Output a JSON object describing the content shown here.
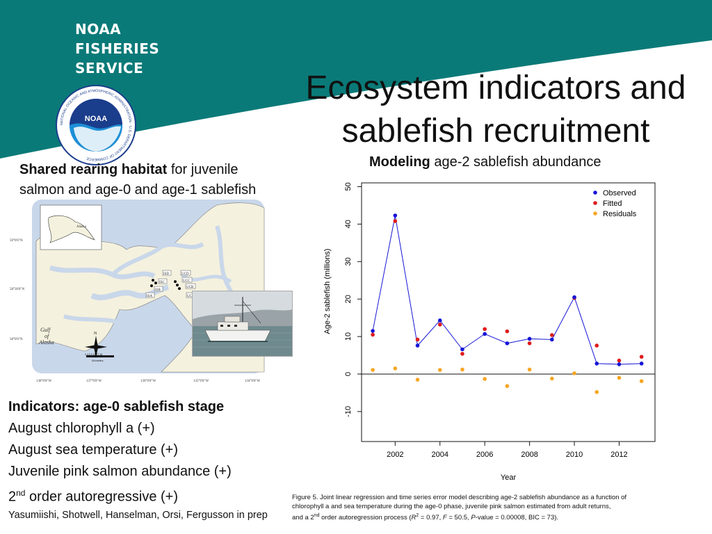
{
  "brand": {
    "line1": "NOAA",
    "line2": "FISHERIES",
    "line3": "SERVICE",
    "logo_text": "NOAA",
    "logo_ring": "NATIONAL OCEANIC AND ATMOSPHERIC ADMINISTRATION · U.S. DEPARTMENT OF COMMERCE",
    "colors": {
      "teal": "#0a7a78",
      "navy": "#1a3d8c",
      "sky": "#1d8fd6"
    }
  },
  "title": {
    "line1": "Ecosystem indicators and",
    "line2": "sablefish recruitment"
  },
  "left": {
    "heading_bold": "Shared rearing habitat",
    "heading_rest": " for juvenile",
    "heading_line2": "salmon and age-0 and age-1 sablefish"
  },
  "map": {
    "lat_labels": [
      "59°0'0\"N",
      "58°30'0\"N",
      "58°0'0\"N"
    ],
    "lon_labels": [
      "138°0'0\"W",
      "137°0'0\"W",
      "136°0'0\"W",
      "135°0'0\"W",
      "134°0'0\"W"
    ],
    "inset_label": "Alaska",
    "gulf_label_1": "Gulf",
    "gulf_label_2": "of",
    "gulf_label_3": "Alaska",
    "stations": [
      "ISD",
      "ISC",
      "ISB",
      "ISA",
      "UCD",
      "UCC",
      "UCB",
      "UCA"
    ],
    "scale_ticks": "0 4.5 9  18  27  36",
    "scale_unit": "Kilometers",
    "compass": "N"
  },
  "indicators": {
    "title": "Indicators: age-0 sablefish stage",
    "items": [
      "August chlorophyll a (+)",
      "August sea temperature (+)",
      "Juvenile pink salmon abundance  (+)"
    ],
    "last_prefix": "2",
    "last_sup": "nd",
    "last_rest": " order autoregressive (+)"
  },
  "authors": "Yasumiishi, Shotwell, Hanselman, Orsi, Fergusson in prep",
  "chart_title": {
    "bold": "Modeling",
    "rest": " age-2 sablefish abundance"
  },
  "chart_data": {
    "type": "line",
    "xlabel": "Year",
    "ylabel": "Age-2 sablefish (millions)",
    "xlim": [
      2000.5,
      2013.6
    ],
    "ylim": [
      -18,
      51
    ],
    "xticks": [
      2002,
      2004,
      2006,
      2008,
      2010,
      2012
    ],
    "yticks": [
      -10,
      0,
      10,
      20,
      30,
      40,
      50
    ],
    "legend_position": "top-right",
    "x": [
      2001,
      2002,
      2003,
      2004,
      2005,
      2006,
      2007,
      2008,
      2009,
      2010,
      2011,
      2012,
      2013
    ],
    "series": [
      {
        "name": "Observed",
        "color": "#1515d6",
        "values": [
          11.5,
          42.3,
          7.6,
          14.3,
          6.6,
          10.7,
          8.2,
          9.4,
          9.2,
          20.5,
          2.8,
          2.6,
          2.8
        ]
      },
      {
        "name": "Fitted",
        "color": "#e01b1b",
        "values": [
          10.5,
          40.8,
          9.2,
          13.2,
          5.4,
          12.0,
          11.4,
          8.2,
          10.4,
          20.3,
          7.6,
          3.6,
          4.6
        ]
      },
      {
        "name": "Residuals",
        "color": "#f5a623",
        "values": [
          1.1,
          1.5,
          -1.5,
          1.1,
          1.2,
          -1.3,
          -3.2,
          1.2,
          -1.2,
          0.2,
          -4.8,
          -1.0,
          -1.9
        ]
      }
    ]
  },
  "caption": {
    "line1": "Figure 5.  Joint linear regression and time series error model  describing age-2 sablefish abundance as a function of",
    "line2": "chlorophyll a and sea temperature during the age-0 phase,  juvenile pink salmon estimated from adult returns,",
    "line3_a": "and a 2",
    "line3_sup": "nd",
    "line3_b": " order autoregression process  (",
    "line3_r": "R",
    "line3_r2": "2",
    "line3_c": " = 0.97, ",
    "line3_f": "F",
    "line3_d": " = 50.5, ",
    "line3_p": "P",
    "line3_e": "-value = 0.00008, BIC = 73)."
  }
}
